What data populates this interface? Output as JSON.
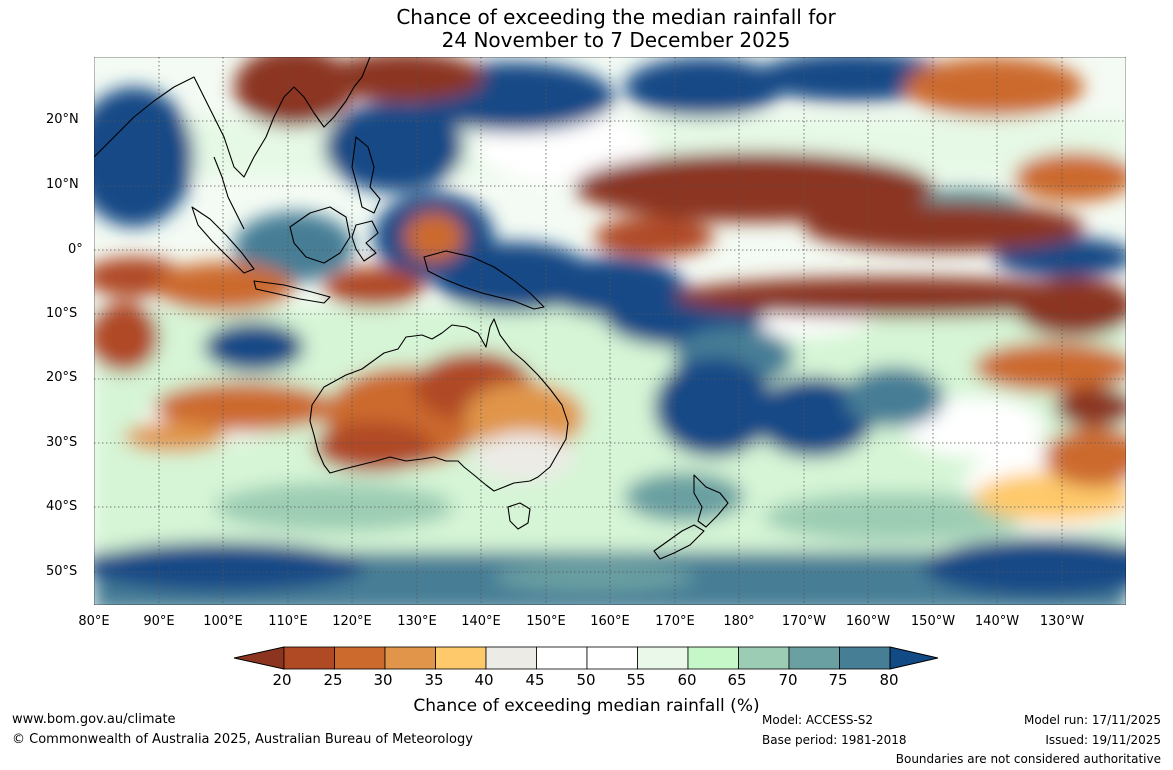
{
  "title": {
    "line1": "Chance of exceeding the median rainfall for",
    "line2": "24 November to 7 December 2025"
  },
  "map": {
    "latitude_labels": [
      "20°N",
      "10°N",
      "0°",
      "10°S",
      "20°S",
      "30°S",
      "40°S",
      "50°S"
    ],
    "longitude_labels": [
      "80°E",
      "90°E",
      "100°E",
      "110°E",
      "120°E",
      "130°E",
      "140°E",
      "150°E",
      "160°E",
      "170°E",
      "180°",
      "170°W",
      "160°W",
      "150°W",
      "140°W",
      "130°W"
    ],
    "land_outline_color": "#000000",
    "ocean_base_color": "#ffffff"
  },
  "legend": {
    "title": "Chance of exceeding median rainfall (%)",
    "ticks": [
      "20",
      "25",
      "30",
      "35",
      "40",
      "45",
      "50",
      "55",
      "60",
      "65",
      "70",
      "75",
      "80"
    ],
    "colors": [
      "#8b3520",
      "#b04a25",
      "#cc6a2e",
      "#e0954a",
      "#fec96a",
      "#ecebe6",
      "#ffffff",
      "#ffffff",
      "#e9f8e9",
      "#c6f7c8",
      "#9ccdb4",
      "#6aa0a2",
      "#467e96",
      "#124a86"
    ]
  },
  "footer": {
    "website": "www.bom.gov.au/climate",
    "copyright": "© Commonwealth of Australia 2025, Australian Bureau of Meteorology",
    "model": "Model: ACCESS-S2",
    "base_period": "Base period: 1981-2018",
    "model_run": "Model run: 17/11/2025",
    "issued": "Issued: 19/11/2025",
    "disclaimer": "Boundaries are not considered authoritative"
  }
}
